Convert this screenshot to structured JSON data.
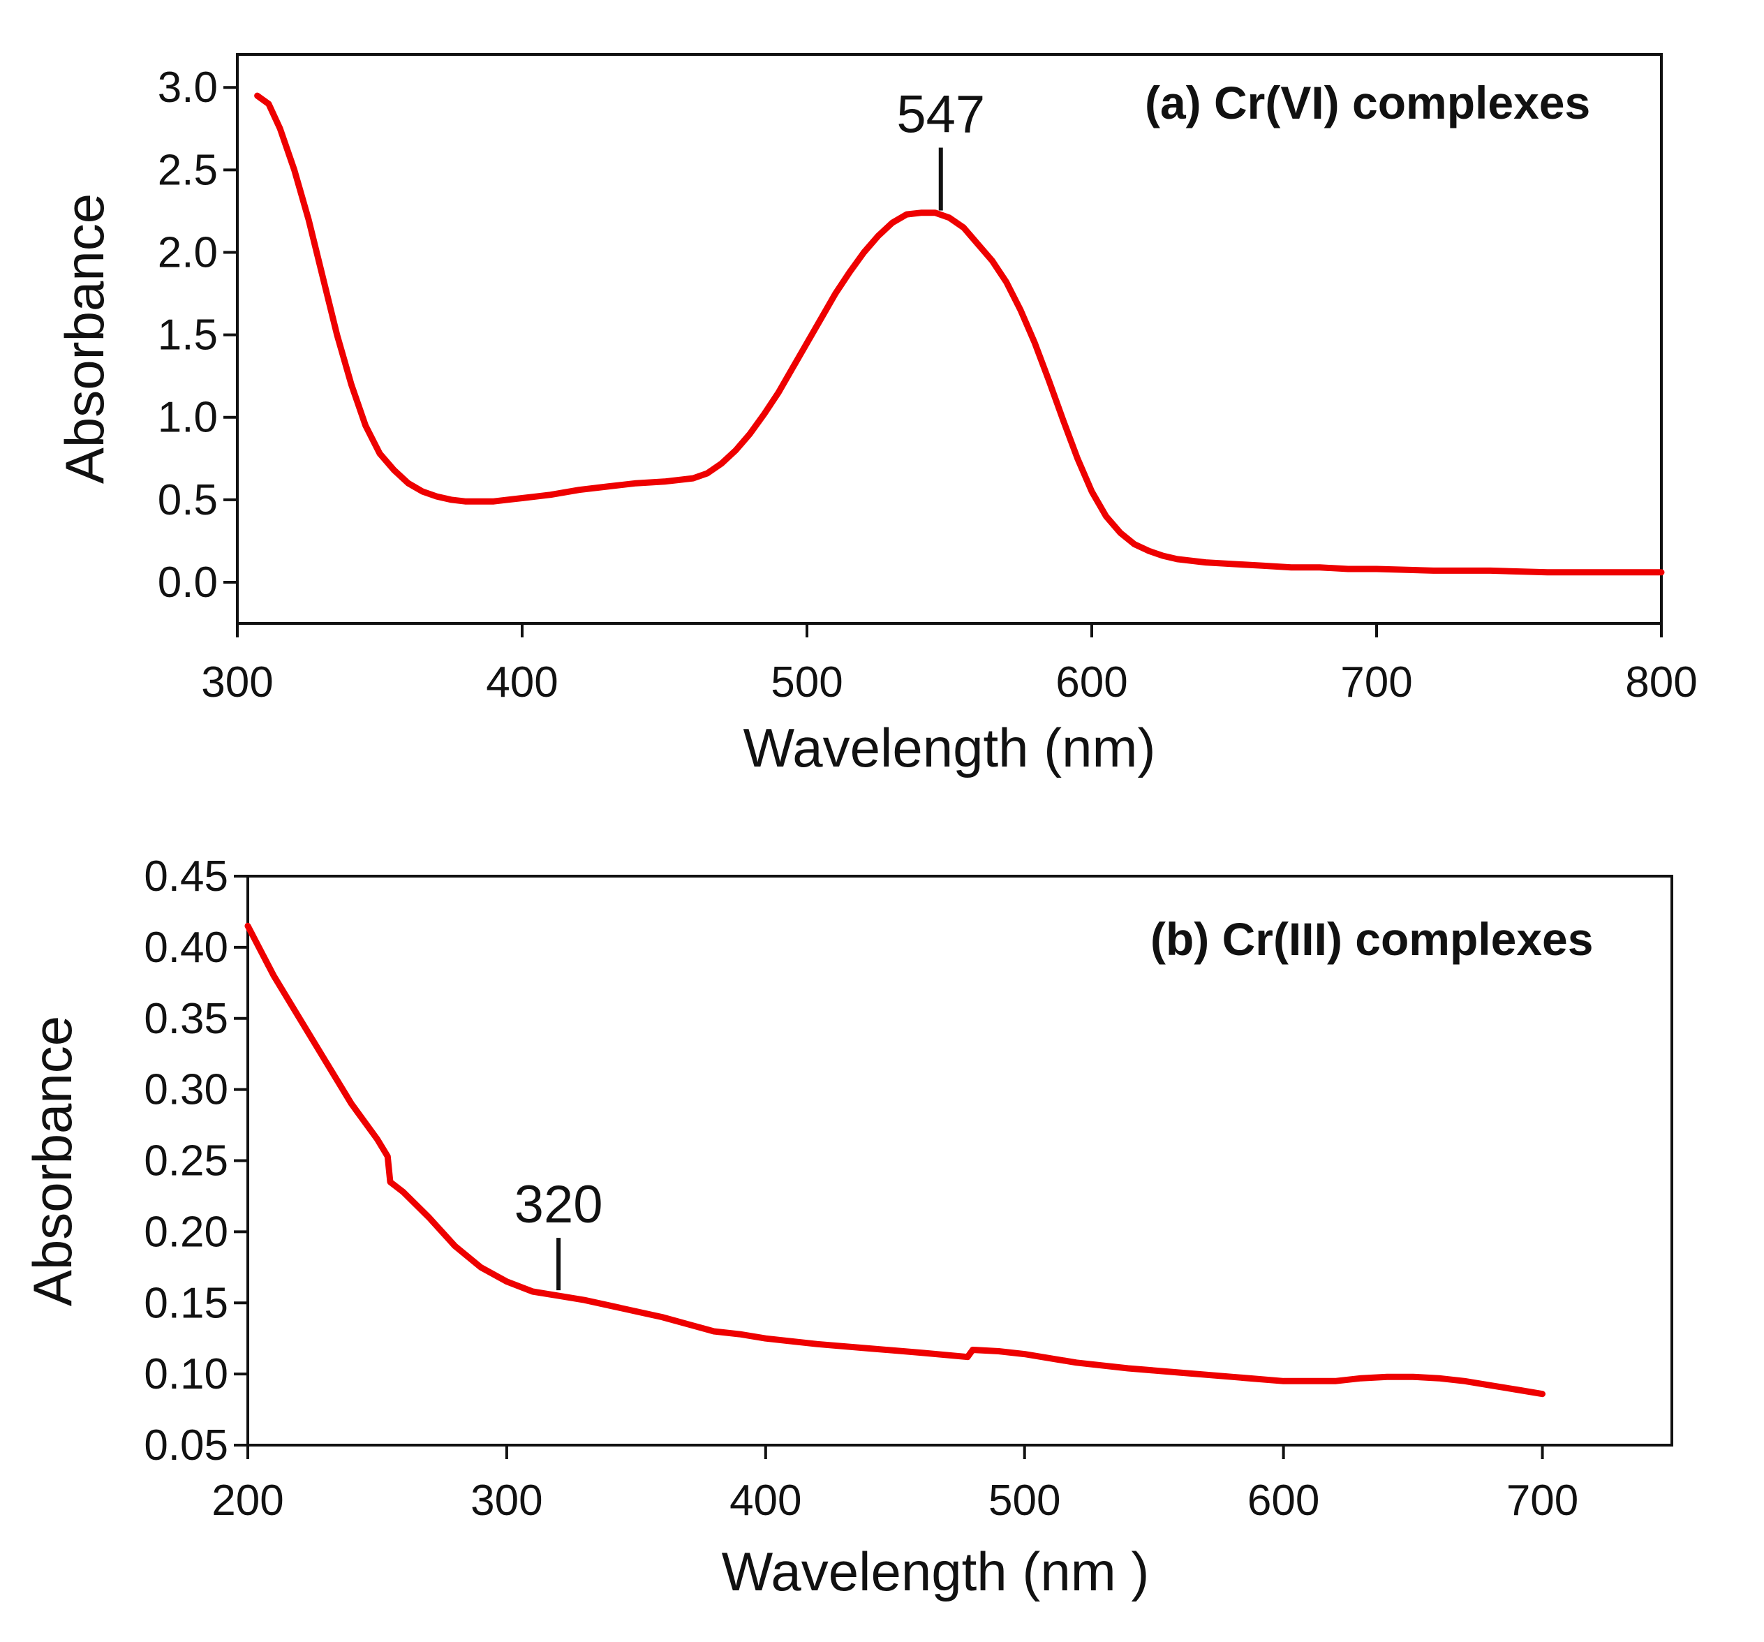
{
  "chart_data": [
    {
      "type": "line",
      "panel": "a",
      "title": "(a) Cr(VI) complexes",
      "xlabel": "Wavelength (nm)",
      "ylabel": "Absorbance",
      "xlim": [
        300,
        800
      ],
      "ylim": [
        -0.25,
        3.2
      ],
      "x_ticks": [
        300,
        400,
        500,
        600,
        700,
        800
      ],
      "x_tick_labels": [
        "300",
        "400",
        "500",
        "600",
        "700",
        "800"
      ],
      "y_ticks": [
        0.0,
        0.5,
        1.0,
        1.5,
        2.0,
        2.5,
        3.0
      ],
      "y_tick_labels": [
        "0.0",
        "0.5",
        "1.0",
        "1.5",
        "2.0",
        "2.5",
        "3.0"
      ],
      "grid": false,
      "series": [
        {
          "name": "Cr(VI) complexes",
          "color": "#ee0000",
          "x": [
            307,
            311,
            315,
            320,
            325,
            330,
            335,
            340,
            345,
            350,
            355,
            360,
            365,
            370,
            375,
            380,
            385,
            390,
            395,
            400,
            410,
            420,
            430,
            440,
            450,
            460,
            465,
            470,
            475,
            480,
            485,
            490,
            495,
            500,
            505,
            510,
            515,
            520,
            525,
            530,
            535,
            540,
            545,
            550,
            555,
            560,
            565,
            570,
            575,
            580,
            585,
            590,
            595,
            600,
            605,
            610,
            615,
            620,
            625,
            630,
            640,
            650,
            660,
            670,
            680,
            690,
            700,
            720,
            740,
            760,
            780,
            800
          ],
          "y": [
            2.95,
            2.9,
            2.75,
            2.5,
            2.2,
            1.85,
            1.5,
            1.2,
            0.95,
            0.78,
            0.68,
            0.6,
            0.55,
            0.52,
            0.5,
            0.49,
            0.49,
            0.49,
            0.5,
            0.51,
            0.53,
            0.56,
            0.58,
            0.6,
            0.61,
            0.63,
            0.66,
            0.72,
            0.8,
            0.9,
            1.02,
            1.15,
            1.3,
            1.45,
            1.6,
            1.75,
            1.88,
            2.0,
            2.1,
            2.18,
            2.23,
            2.24,
            2.24,
            2.21,
            2.15,
            2.05,
            1.95,
            1.82,
            1.65,
            1.45,
            1.22,
            0.98,
            0.75,
            0.55,
            0.4,
            0.3,
            0.23,
            0.19,
            0.16,
            0.14,
            0.12,
            0.11,
            0.1,
            0.09,
            0.09,
            0.08,
            0.08,
            0.07,
            0.07,
            0.06,
            0.06,
            0.06
          ]
        }
      ],
      "annotations": [
        {
          "text": "547",
          "x": 547,
          "y": 2.22
        }
      ]
    },
    {
      "type": "line",
      "panel": "b",
      "title": "(b) Cr(III) complexes",
      "xlabel": "Wavelength (nm )",
      "ylabel": "Absorbance",
      "xlim": [
        200,
        750
      ],
      "ylim": [
        0.05,
        0.45
      ],
      "x_ticks": [
        200,
        300,
        400,
        500,
        600,
        700
      ],
      "x_tick_labels": [
        "200",
        "300",
        "400",
        "500",
        "600",
        "700"
      ],
      "y_ticks": [
        0.05,
        0.1,
        0.15,
        0.2,
        0.25,
        0.3,
        0.35,
        0.4,
        0.45
      ],
      "y_tick_labels": [
        "0.05",
        "0.10",
        "0.15",
        "0.20",
        "0.25",
        "0.30",
        "0.35",
        "0.40",
        "0.45"
      ],
      "grid": false,
      "series": [
        {
          "name": "Cr(III) complexes",
          "color": "#ee0000",
          "x": [
            200,
            210,
            220,
            230,
            240,
            250,
            254,
            255,
            260,
            270,
            280,
            290,
            300,
            310,
            320,
            330,
            340,
            350,
            360,
            370,
            380,
            390,
            400,
            420,
            440,
            460,
            478,
            480,
            490,
            500,
            520,
            540,
            560,
            580,
            600,
            620,
            630,
            640,
            650,
            660,
            670,
            680,
            690,
            700
          ],
          "y": [
            0.415,
            0.38,
            0.35,
            0.32,
            0.29,
            0.265,
            0.253,
            0.235,
            0.228,
            0.21,
            0.19,
            0.175,
            0.165,
            0.158,
            0.155,
            0.152,
            0.148,
            0.144,
            0.14,
            0.135,
            0.13,
            0.128,
            0.125,
            0.121,
            0.118,
            0.115,
            0.112,
            0.117,
            0.116,
            0.114,
            0.108,
            0.104,
            0.101,
            0.098,
            0.095,
            0.095,
            0.097,
            0.098,
            0.098,
            0.097,
            0.095,
            0.092,
            0.089,
            0.086
          ]
        }
      ],
      "annotations": [
        {
          "text": "320",
          "x": 320,
          "y": 0.155
        }
      ]
    }
  ]
}
